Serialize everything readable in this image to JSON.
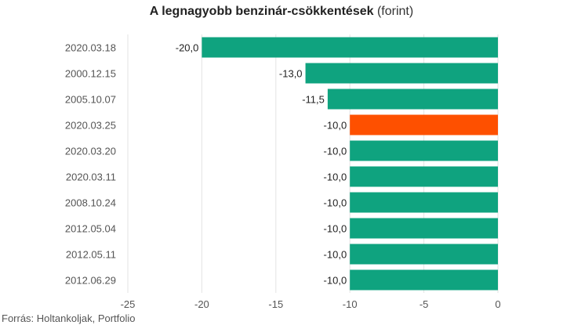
{
  "title_main": "A legnagyobb benzinár-csökkentések",
  "title_unit": "(forint)",
  "source": "Forrás: Holtankoljak, Portfolio",
  "colors": {
    "default_bar": "#0fa37f",
    "highlight_bar": "#fe5000"
  },
  "chart_data": {
    "type": "bar",
    "orientation": "horizontal",
    "categories": [
      "2020.03.18",
      "2000.12.15",
      "2005.10.07",
      "2020.03.25",
      "2020.03.20",
      "2020.03.11",
      "2008.10.24",
      "2012.05.04",
      "2012.05.11",
      "2012.06.29"
    ],
    "values": [
      -20.0,
      -13.0,
      -11.5,
      -10.0,
      -10.0,
      -10.0,
      -10.0,
      -10.0,
      -10.0,
      -10.0
    ],
    "value_labels": [
      "-20,0",
      "-13,0",
      "-11,5",
      "-10,0",
      "-10,0",
      "-10,0",
      "-10,0",
      "-10,0",
      "-10,0",
      "-10,0"
    ],
    "highlight_index": 3,
    "xlim": [
      -25,
      0
    ],
    "x_ticks": [
      -25,
      -20,
      -15,
      -10,
      -5,
      0
    ],
    "grid": true,
    "title": "A legnagyobb benzinár-csökkentések (forint)"
  }
}
